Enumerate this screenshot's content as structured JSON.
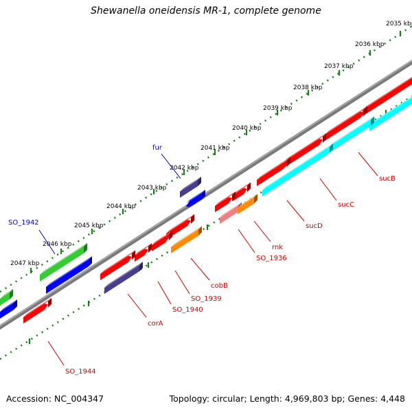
{
  "title": "Shewanella oneidensis MR-1, complete genome",
  "footer": {
    "accession": "Accession: NC_004347",
    "info": "Topology: circular; Length: 4,969,803 bp; Genes: 4,448"
  },
  "colors": {
    "backbone": "#888888",
    "ruler": "#1a7a1a",
    "red": "#ff0000",
    "light_red": "#f08080",
    "cyan": "#00ffff",
    "blue": "#0000ff",
    "dark_slate_blue": "#483d8b",
    "green": "#33cc33",
    "orange": "#ff8c00",
    "label_red": "#cc0000",
    "label_blue": "#0000cc"
  },
  "ruler_ticks": [
    {
      "label": "2035 kbp"
    },
    {
      "label": "2036 kbp"
    },
    {
      "label": "2037 kbp"
    },
    {
      "label": "2038 kbp"
    },
    {
      "label": "2039 kbp"
    },
    {
      "label": "2040 kbp"
    },
    {
      "label": "2041 kbp"
    },
    {
      "label": "2042 kbp"
    },
    {
      "label": "2043 kbp"
    },
    {
      "label": "2044 kbp"
    },
    {
      "label": "2045 kbp"
    },
    {
      "label": "2046 kbp"
    },
    {
      "label": "2047 kbp"
    }
  ],
  "gene_labels": [
    {
      "id": "sucB",
      "text": "sucB",
      "color": "#cc0000"
    },
    {
      "id": "sucC",
      "text": "sucC",
      "color": "#cc0000"
    },
    {
      "id": "sucD",
      "text": "sucD",
      "color": "#cc0000"
    },
    {
      "id": "rnk",
      "text": "rnk",
      "color": "#cc0000"
    },
    {
      "id": "SO_1936",
      "text": "SO_1936",
      "color": "#cc0000"
    },
    {
      "id": "cobB",
      "text": "cobB",
      "color": "#cc0000"
    },
    {
      "id": "SO_1939",
      "text": "SO_1939",
      "color": "#cc0000"
    },
    {
      "id": "SO_1940",
      "text": "SO_1940",
      "color": "#cc0000"
    },
    {
      "id": "corA",
      "text": "corA",
      "color": "#cc0000"
    },
    {
      "id": "SO_1944",
      "text": "SO_1944",
      "color": "#cc0000"
    },
    {
      "id": "fur",
      "text": "fur",
      "color": "#0000cc"
    },
    {
      "id": "SO_1942",
      "text": "SO_1942",
      "color": "#0000cc"
    }
  ]
}
